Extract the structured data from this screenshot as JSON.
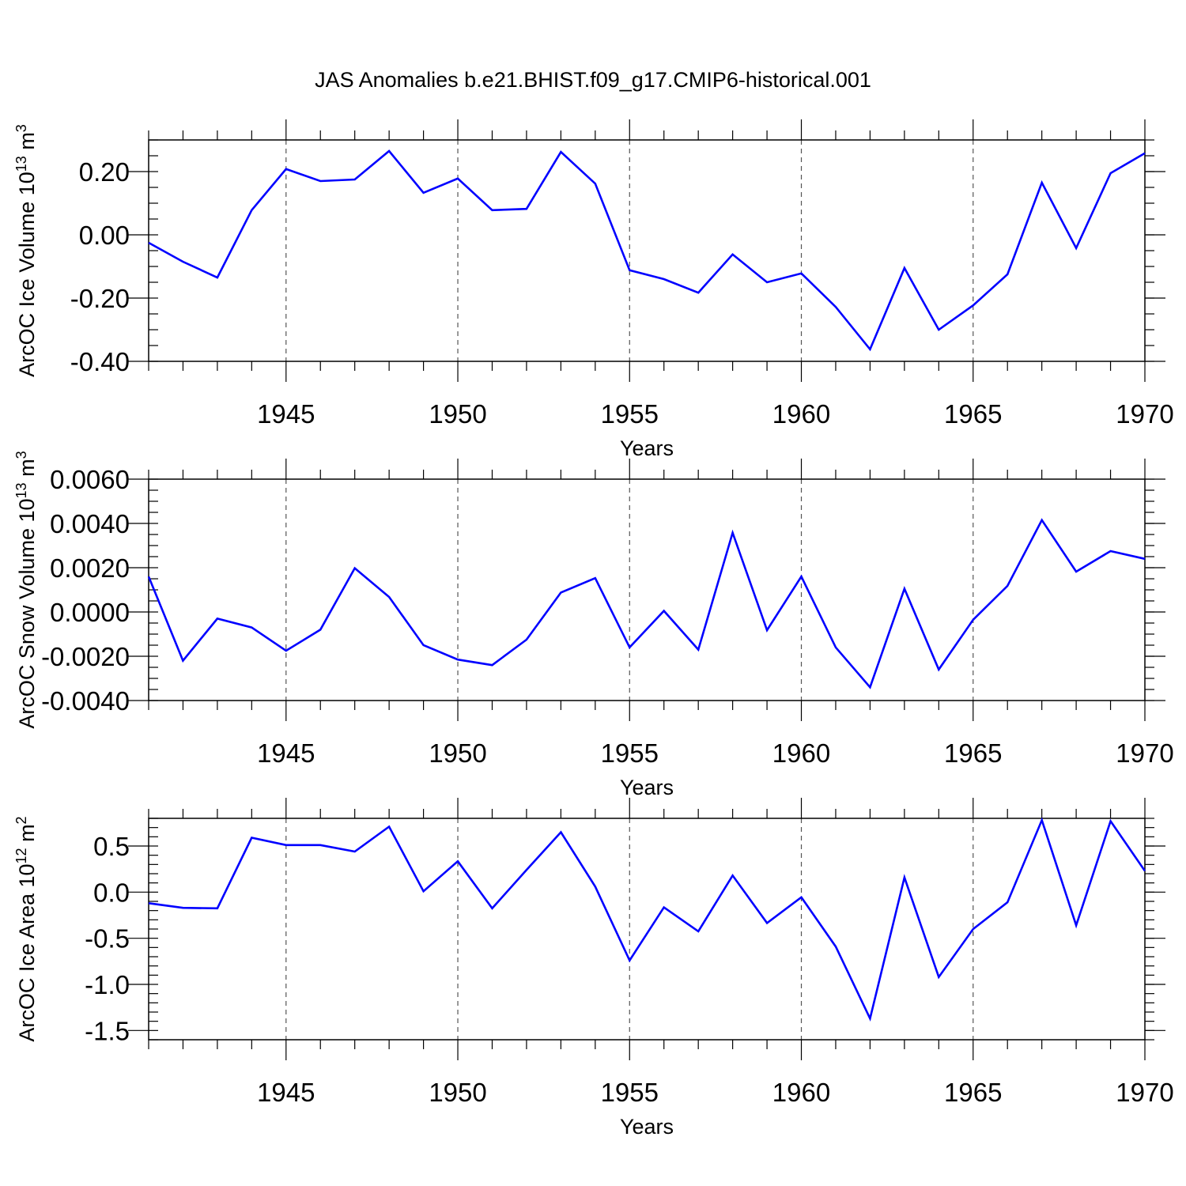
{
  "page": {
    "title": "JAS Anomalies b.e21.BHIST.f09_g17.CMIP6-historical.001"
  },
  "chart_data": [
    {
      "type": "line",
      "title": "JAS Anomalies b.e21.BHIST.f09_g17.CMIP6-historical.001",
      "xlabel": "Years",
      "ylabel": "ArcOC Ice Volume 10",
      "ylabel_sup": "13",
      "ylabel_unit": "m",
      "ylabel_unit_sup": "3",
      "xlim": [
        1941,
        1970
      ],
      "ylim": [
        -0.4,
        0.3
      ],
      "x_ticks": [
        "1945",
        "1950",
        "1955",
        "1960",
        "1965",
        "1970"
      ],
      "y_ticks": [
        {
          "value": -0.4,
          "label": "-0.40"
        },
        {
          "value": -0.2,
          "label": "-0.20"
        },
        {
          "value": 0.0,
          "label": "0.00"
        },
        {
          "value": 0.2,
          "label": "0.20"
        }
      ],
      "y_minor_step": 0.05,
      "grid": "vertical dashed at labeled years",
      "series": [
        {
          "name": "ArcOC Ice Volume",
          "color": "#0000ff",
          "x": [
            1941,
            1942,
            1943,
            1944,
            1945,
            1946,
            1947,
            1948,
            1949,
            1950,
            1951,
            1952,
            1953,
            1954,
            1955,
            1956,
            1957,
            1958,
            1959,
            1960,
            1961,
            1962,
            1963,
            1964,
            1965,
            1966,
            1967,
            1968,
            1969,
            1970
          ],
          "values": [
            -0.025,
            -0.085,
            -0.135,
            0.078,
            0.208,
            0.17,
            0.175,
            0.265,
            0.133,
            0.178,
            0.078,
            0.082,
            0.262,
            0.162,
            -0.112,
            -0.14,
            -0.183,
            -0.062,
            -0.15,
            -0.122,
            -0.228,
            -0.362,
            -0.105,
            -0.3,
            -0.223,
            -0.125,
            0.165,
            -0.042,
            0.195,
            0.258
          ]
        }
      ]
    },
    {
      "type": "line",
      "title": "",
      "xlabel": "Years",
      "ylabel": "ArcOC Snow Volume 10",
      "ylabel_sup": "13",
      "ylabel_unit": "m",
      "ylabel_unit_sup": "3",
      "xlim": [
        1941,
        1970
      ],
      "ylim": [
        -0.004,
        0.006
      ],
      "x_ticks": [
        "1945",
        "1950",
        "1955",
        "1960",
        "1965",
        "1970"
      ],
      "y_ticks": [
        {
          "value": -0.004,
          "label": "-0.0040"
        },
        {
          "value": -0.002,
          "label": "-0.0020"
        },
        {
          "value": 0.0,
          "label": "0.0000"
        },
        {
          "value": 0.002,
          "label": "0.0020"
        },
        {
          "value": 0.004,
          "label": "0.0040"
        },
        {
          "value": 0.006,
          "label": "0.0060"
        }
      ],
      "y_minor_step": 0.0005,
      "grid": "vertical dashed at labeled years",
      "series": [
        {
          "name": "ArcOC Snow Volume",
          "color": "#0000ff",
          "x": [
            1941,
            1942,
            1943,
            1944,
            1945,
            1946,
            1947,
            1948,
            1949,
            1950,
            1951,
            1952,
            1953,
            1954,
            1955,
            1956,
            1957,
            1958,
            1959,
            1960,
            1961,
            1962,
            1963,
            1964,
            1965,
            1966,
            1967,
            1968,
            1969,
            1970
          ],
          "values": [
            0.0016,
            -0.0022,
            -0.0003,
            -0.0007,
            -0.00175,
            -0.0008,
            0.00198,
            0.00068,
            -0.0015,
            -0.00215,
            -0.0024,
            -0.00125,
            0.00088,
            0.00153,
            -0.0016,
            5e-05,
            -0.0017,
            0.00358,
            -0.00082,
            0.0016,
            -0.0016,
            -0.0034,
            0.00105,
            -0.0026,
            -0.00035,
            0.00118,
            0.00415,
            0.00182,
            0.00275,
            0.0024
          ]
        }
      ]
    },
    {
      "type": "line",
      "title": "",
      "xlabel": "Years",
      "ylabel": "ArcOC Ice Area 10",
      "ylabel_sup": "12",
      "ylabel_unit": "m",
      "ylabel_unit_sup": "2",
      "xlim": [
        1941,
        1970
      ],
      "ylim": [
        -1.6,
        0.8
      ],
      "x_ticks": [
        "1945",
        "1950",
        "1955",
        "1960",
        "1965",
        "1970"
      ],
      "y_ticks": [
        {
          "value": -1.5,
          "label": "-1.5"
        },
        {
          "value": -1.0,
          "label": "-1.0"
        },
        {
          "value": -0.5,
          "label": "-0.5"
        },
        {
          "value": 0.0,
          "label": "0.0"
        },
        {
          "value": 0.5,
          "label": "0.5"
        }
      ],
      "y_minor_step": 0.1,
      "grid": "vertical dashed at labeled years",
      "series": [
        {
          "name": "ArcOC Ice Area",
          "color": "#0000ff",
          "x": [
            1941,
            1942,
            1943,
            1944,
            1945,
            1946,
            1947,
            1948,
            1949,
            1950,
            1951,
            1952,
            1953,
            1954,
            1955,
            1956,
            1957,
            1958,
            1959,
            1960,
            1961,
            1962,
            1963,
            1964,
            1965,
            1966,
            1967,
            1968,
            1969,
            1970
          ],
          "values": [
            -0.12,
            -0.17,
            -0.175,
            0.59,
            0.51,
            0.51,
            0.44,
            0.71,
            0.01,
            0.335,
            -0.175,
            0.24,
            0.65,
            0.06,
            -0.74,
            -0.165,
            -0.425,
            0.18,
            -0.335,
            -0.055,
            -0.59,
            -1.37,
            0.16,
            -0.92,
            -0.4,
            -0.11,
            0.78,
            -0.36,
            0.77,
            0.23
          ]
        }
      ]
    }
  ]
}
